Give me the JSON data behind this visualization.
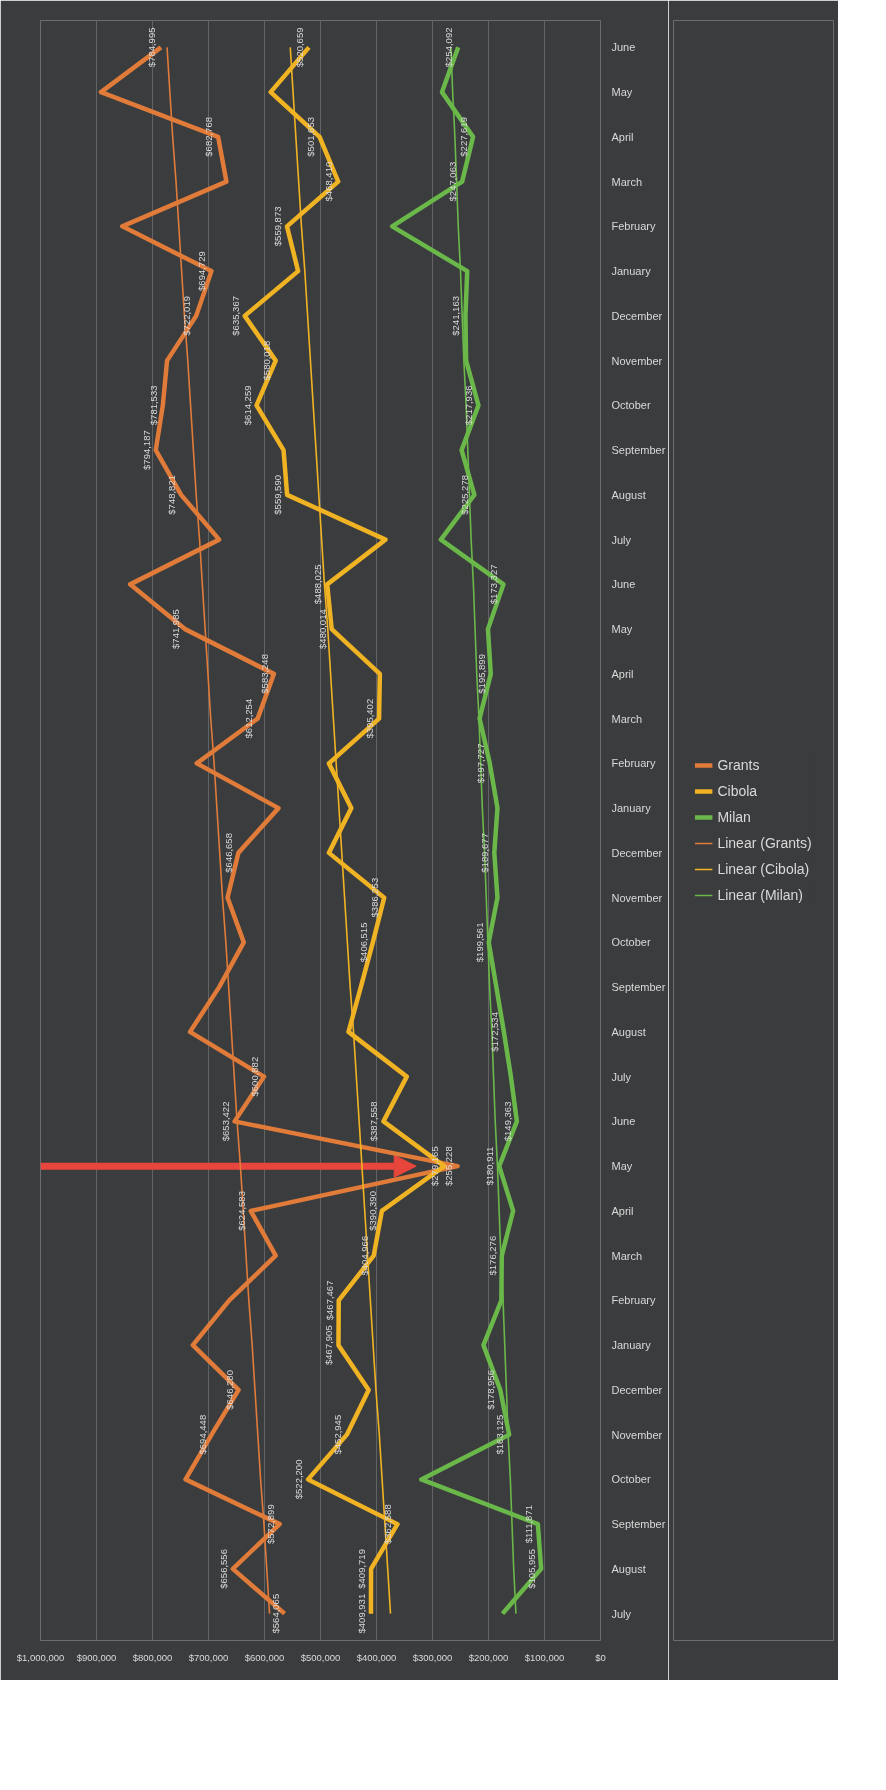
{
  "chart_data": {
    "type": "line",
    "orientation": "horizontal",
    "categories": [
      "June",
      "May",
      "April",
      "March",
      "February",
      "January",
      "December",
      "November",
      "October",
      "September",
      "August",
      "July",
      "June",
      "May",
      "April",
      "March",
      "February",
      "January",
      "December",
      "November",
      "October",
      "September",
      "August",
      "July",
      "June",
      "May",
      "April",
      "March",
      "February",
      "January",
      "December",
      "November",
      "October",
      "September",
      "August",
      "July"
    ],
    "xlim": [
      1000000,
      0
    ],
    "xticks": [
      {
        "value": 0,
        "label": "$0"
      },
      {
        "value": 100000,
        "label": "$100,000"
      },
      {
        "value": 200000,
        "label": "$200,000"
      },
      {
        "value": 300000,
        "label": "$300,000"
      },
      {
        "value": 400000,
        "label": "$400,000"
      },
      {
        "value": 500000,
        "label": "$500,000"
      },
      {
        "value": 600000,
        "label": "$600,000"
      },
      {
        "value": 700000,
        "label": "$700,000"
      },
      {
        "value": 800000,
        "label": "$800,000"
      },
      {
        "value": 900000,
        "label": "$900,000"
      },
      {
        "value": 1000000,
        "label": "$1,000,000"
      }
    ],
    "grid": "x",
    "legend": "right",
    "series": [
      {
        "name": "Grants",
        "color": "#e07b39",
        "values": [
          784995,
          892000,
          682768,
          668000,
          854000,
          694729,
          722019,
          774000,
          781533,
          794187,
          748821,
          681000,
          840000,
          741985,
          583248,
          612254,
          721000,
          575000,
          646658,
          666000,
          637000,
          681000,
          733000,
          600882,
          653422,
          255228,
          624583,
          580000,
          663000,
          728000,
          646280,
          694448,
          741000,
          572899,
          656556,
          564065
        ],
        "value_labels": [
          "$784,995",
          null,
          "$682,768",
          null,
          null,
          "$694,729",
          "$722,019",
          null,
          "$781,533",
          "$794,187",
          "$748,821",
          null,
          null,
          "$741,985",
          "$583,248",
          "$612,254",
          null,
          null,
          "$646,658",
          null,
          null,
          null,
          null,
          "$600,882",
          "$653,422",
          "$255,228",
          "$624,583",
          null,
          null,
          null,
          "$646,280",
          "$694,448",
          null,
          "$572,899",
          "$656,556",
          "$564,065"
        ]
      },
      {
        "name": "Cibola",
        "color": "#f0b323",
        "values": [
          520659,
          589000,
          501653,
          468410,
          559873,
          540000,
          635367,
          580018,
          614259,
          566000,
          559590,
          384000,
          488025,
          480014,
          394000,
          395402,
          485000,
          445000,
          485000,
          386253,
          406515,
          428000,
          450000,
          346000,
          387558,
          279165,
          390390,
          404966,
          467467,
          467905,
          414000,
          452945,
          522200,
          362588,
          409719,
          409931
        ],
        "value_labels": [
          "$520,659",
          null,
          "$501,653",
          "$468,410",
          "$559,873",
          null,
          "$635,367",
          "$580,018",
          "$614,259",
          null,
          "$559,590",
          null,
          "$488,025",
          "$480,014",
          null,
          "$395,402",
          null,
          null,
          null,
          "$386,253",
          "$406,515",
          null,
          null,
          null,
          "$387,558",
          "$279,165",
          "$390,390",
          "$404,966",
          "$467,467",
          "$467,905",
          null,
          "$452,945",
          "$522,200",
          "$362,588",
          "$409,719",
          "$409,931"
        ]
      },
      {
        "name": "Milan",
        "color": "#6bb84a",
        "values": [
          254092,
          283000,
          227619,
          247063,
          372000,
          238000,
          241163,
          240000,
          217936,
          248000,
          225278,
          285000,
          173327,
          201000,
          195899,
          216000,
          197727,
          184000,
          189677,
          184000,
          199561,
          186000,
          172534,
          160000,
          149363,
          180911,
          156000,
          176276,
          177000,
          209000,
          178956,
          163125,
          320000,
          111871,
          105955,
          175000
        ],
        "value_labels": [
          "$254,092",
          null,
          "$227,619",
          "$247,063",
          null,
          null,
          "$241,163",
          null,
          "$217,936",
          null,
          "$225,278",
          null,
          "$173,327",
          null,
          "$195,899",
          null,
          "$197,727",
          null,
          "$189,677",
          null,
          "$199,561",
          null,
          "$172,534",
          null,
          "$149,363",
          "$180,911",
          null,
          "$176,276",
          null,
          null,
          "$178,956",
          "$163,125",
          null,
          "$111,871",
          "$105,955",
          null
        ]
      },
      {
        "name": "Linear (Grants)",
        "color": "#e07b39",
        "values": [
          774000,
          769000,
          764000,
          758000,
          753000,
          748000,
          743000,
          737000,
          732000,
          727000,
          722000,
          716000,
          711000,
          706000,
          701000,
          696000,
          690000,
          685000,
          680000,
          675000,
          669000,
          664000,
          659000,
          654000,
          649000,
          643000,
          638000,
          633000,
          628000,
          622000,
          617000,
          612000,
          607000,
          601000,
          596000,
          591000
        ]
      },
      {
        "name": "Linear (Cibola)",
        "color": "#f0b323",
        "values": [
          554000,
          549000,
          544000,
          539000,
          534000,
          528000,
          523000,
          518000,
          513000,
          508000,
          503000,
          498000,
          493000,
          487000,
          482000,
          477000,
          472000,
          467000,
          462000,
          457000,
          452000,
          447000,
          441000,
          436000,
          431000,
          426000,
          421000,
          416000,
          411000,
          406000,
          401000,
          395000,
          390000,
          385000,
          380000,
          375000
        ]
      },
      {
        "name": "Linear (Milan)",
        "color": "#6bb84a",
        "values": [
          267000,
          264000,
          260000,
          257000,
          254000,
          250000,
          247000,
          244000,
          240000,
          237000,
          234000,
          231000,
          227000,
          224000,
          221000,
          217000,
          214000,
          211000,
          207000,
          204000,
          201000,
          198000,
          194000,
          191000,
          188000,
          184000,
          181000,
          178000,
          174000,
          171000,
          168000,
          165000,
          161000,
          158000,
          155000,
          151000
        ]
      }
    ]
  }
}
